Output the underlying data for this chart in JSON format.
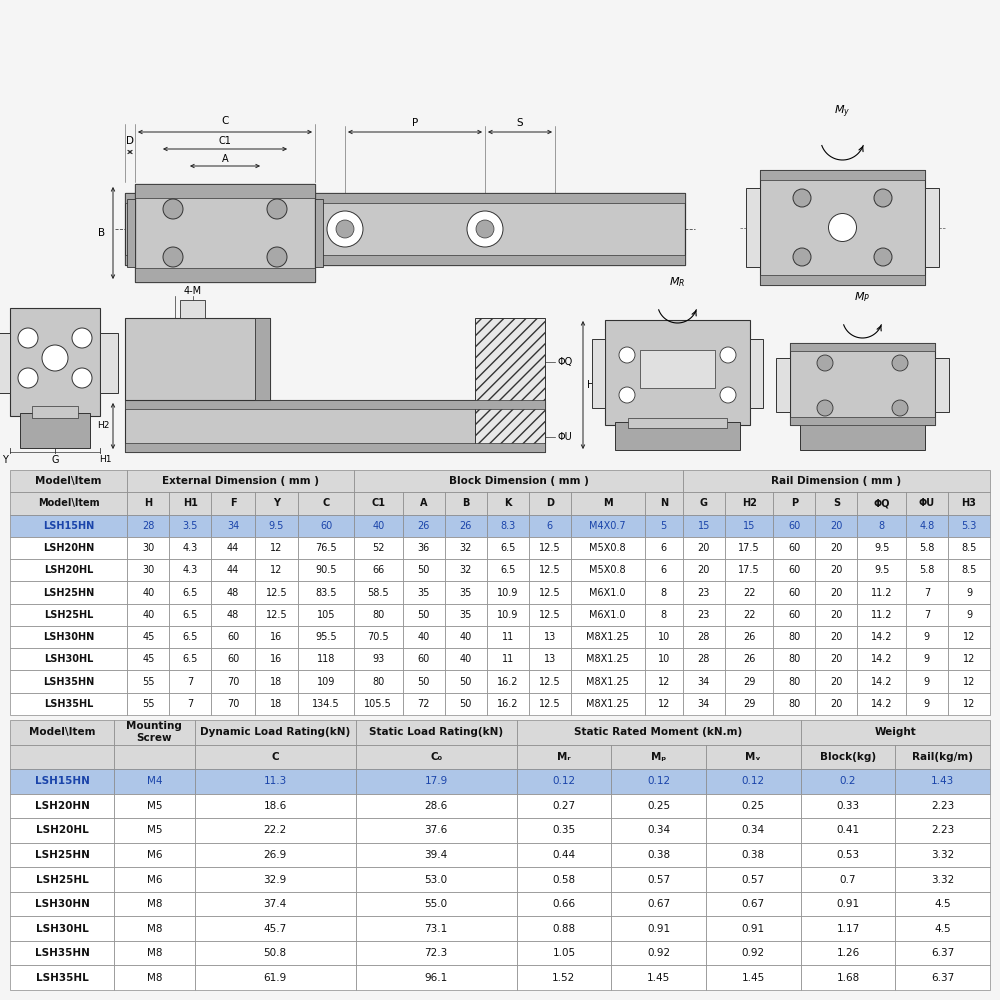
{
  "bg_color": "#f5f5f5",
  "table1_header_bg": "#d9d9d9",
  "table1_highlight_bg": "#aec6e8",
  "table1_highlight_text": "#1a44aa",
  "table2_header_bg": "#d9d9d9",
  "table2_highlight_bg": "#aec6e8",
  "table2_highlight_text": "#1a44aa",
  "cell_text_color": "#111111",
  "border_color": "#888888",
  "table1_col_headers": [
    "Model\\Item",
    "H",
    "H1",
    "F",
    "Y",
    "C",
    "C1",
    "A",
    "B",
    "K",
    "D",
    "M",
    "N",
    "G",
    "H2",
    "P",
    "S",
    "ΦQ",
    "ΦU",
    "H3"
  ],
  "table1_rows": [
    [
      "LSH15HN",
      "28",
      "3.5",
      "34",
      "9.5",
      "60",
      "40",
      "26",
      "26",
      "8.3",
      "6",
      "M4X0.7",
      "5",
      "15",
      "15",
      "60",
      "20",
      "8",
      "4.8",
      "5.3"
    ],
    [
      "LSH20HN",
      "30",
      "4.3",
      "44",
      "12",
      "76.5",
      "52",
      "36",
      "32",
      "6.5",
      "12.5",
      "M5X0.8",
      "6",
      "20",
      "17.5",
      "60",
      "20",
      "9.5",
      "5.8",
      "8.5"
    ],
    [
      "LSH20HL",
      "30",
      "4.3",
      "44",
      "12",
      "90.5",
      "66",
      "50",
      "32",
      "6.5",
      "12.5",
      "M5X0.8",
      "6",
      "20",
      "17.5",
      "60",
      "20",
      "9.5",
      "5.8",
      "8.5"
    ],
    [
      "LSH25HN",
      "40",
      "6.5",
      "48",
      "12.5",
      "83.5",
      "58.5",
      "35",
      "35",
      "10.9",
      "12.5",
      "M6X1.0",
      "8",
      "23",
      "22",
      "60",
      "20",
      "11.2",
      "7",
      "9"
    ],
    [
      "LSH25HL",
      "40",
      "6.5",
      "48",
      "12.5",
      "105",
      "80",
      "50",
      "35",
      "10.9",
      "12.5",
      "M6X1.0",
      "8",
      "23",
      "22",
      "60",
      "20",
      "11.2",
      "7",
      "9"
    ],
    [
      "LSH30HN",
      "45",
      "6.5",
      "60",
      "16",
      "95.5",
      "70.5",
      "40",
      "40",
      "11",
      "13",
      "M8X1.25",
      "10",
      "28",
      "26",
      "80",
      "20",
      "14.2",
      "9",
      "12"
    ],
    [
      "LSH30HL",
      "45",
      "6.5",
      "60",
      "16",
      "118",
      "93",
      "60",
      "40",
      "11",
      "13",
      "M8X1.25",
      "10",
      "28",
      "26",
      "80",
      "20",
      "14.2",
      "9",
      "12"
    ],
    [
      "LSH35HN",
      "55",
      "7",
      "70",
      "18",
      "109",
      "80",
      "50",
      "50",
      "16.2",
      "12.5",
      "M8X1.25",
      "12",
      "34",
      "29",
      "80",
      "20",
      "14.2",
      "9",
      "12"
    ],
    [
      "LSH35HL",
      "55",
      "7",
      "70",
      "18",
      "134.5",
      "105.5",
      "72",
      "50",
      "16.2",
      "12.5",
      "M8X1.25",
      "12",
      "34",
      "29",
      "80",
      "20",
      "14.2",
      "9",
      "12"
    ]
  ],
  "table2_rows": [
    [
      "LSH15HN",
      "M4",
      "11.3",
      "17.9",
      "0.12",
      "0.12",
      "0.12",
      "0.2",
      "1.43"
    ],
    [
      "LSH20HN",
      "M5",
      "18.6",
      "28.6",
      "0.27",
      "0.25",
      "0.25",
      "0.33",
      "2.23"
    ],
    [
      "LSH20HL",
      "M5",
      "22.2",
      "37.6",
      "0.35",
      "0.34",
      "0.34",
      "0.41",
      "2.23"
    ],
    [
      "LSH25HN",
      "M6",
      "26.9",
      "39.4",
      "0.44",
      "0.38",
      "0.38",
      "0.53",
      "3.32"
    ],
    [
      "LSH25HL",
      "M6",
      "32.9",
      "53.0",
      "0.58",
      "0.57",
      "0.57",
      "0.7",
      "3.32"
    ],
    [
      "LSH30HN",
      "M8",
      "37.4",
      "55.0",
      "0.66",
      "0.67",
      "0.67",
      "0.91",
      "4.5"
    ],
    [
      "LSH30HL",
      "M8",
      "45.7",
      "73.1",
      "0.88",
      "0.91",
      "0.91",
      "1.17",
      "4.5"
    ],
    [
      "LSH35HN",
      "M8",
      "50.8",
      "72.3",
      "1.05",
      "0.92",
      "0.92",
      "1.26",
      "6.37"
    ],
    [
      "LSH35HL",
      "M8",
      "61.9",
      "96.1",
      "1.52",
      "1.45",
      "1.45",
      "1.68",
      "6.37"
    ]
  ],
  "drawing_bg": "#ffffff",
  "dim_line_color": "#222222",
  "part_fill_light": "#e0e0e0",
  "part_fill_mid": "#c8c8c8",
  "part_fill_dark": "#a8a8a8",
  "part_edge": "#333333"
}
